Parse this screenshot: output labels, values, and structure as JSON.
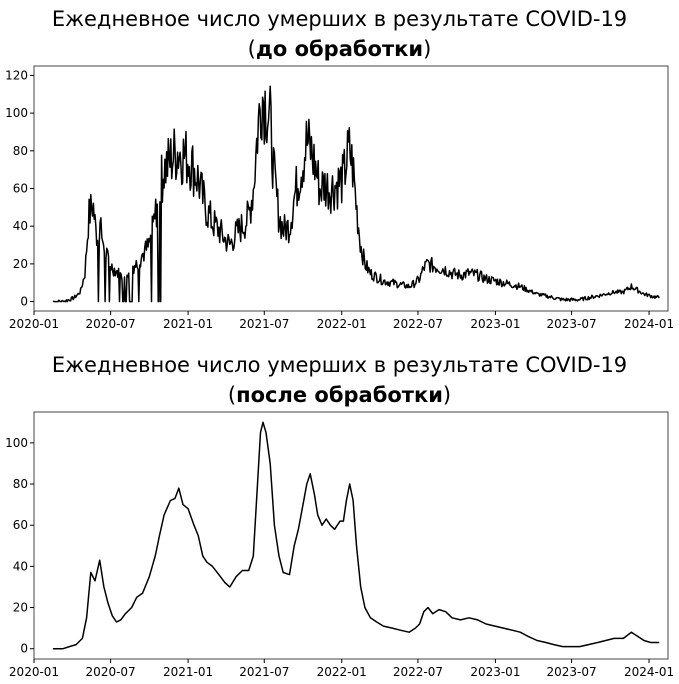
{
  "chart_data": [
    {
      "type": "line",
      "title_main": "Ежедневное число умерших в результате COVID-19",
      "title_open": "(",
      "title_bold": "до обработки",
      "title_close": ")",
      "xlabel": "",
      "ylabel": "",
      "x_ticks": [
        "2020-01",
        "2020-07",
        "2021-01",
        "2021-07",
        "2022-01",
        "2022-07",
        "2023-01",
        "2023-07",
        "2024-01"
      ],
      "y_ticks": [
        0,
        20,
        40,
        60,
        80,
        100,
        120
      ],
      "xlim": [
        "2020-01-01",
        "2024-02-15"
      ],
      "ylim": [
        -5,
        125
      ],
      "grid": false,
      "series": [
        {
          "noisy": true,
          "points": [
            [
              "2020-02-15",
              0
            ],
            [
              "2020-03-10",
              0
            ],
            [
              "2020-03-25",
              1
            ],
            [
              "2020-04-05",
              2
            ],
            [
              "2020-04-20",
              5
            ],
            [
              "2020-05-01",
              15
            ],
            [
              "2020-05-10",
              45
            ],
            [
              "2020-05-20",
              52
            ],
            [
              "2020-05-28",
              35
            ],
            [
              "2020-06-05",
              40
            ],
            [
              "2020-06-15",
              30
            ],
            [
              "2020-06-25",
              22
            ],
            [
              "2020-07-05",
              18
            ],
            [
              "2020-07-20",
              15
            ],
            [
              "2020-08-01",
              12
            ],
            [
              "2020-08-15",
              18
            ],
            [
              "2020-09-01",
              20
            ],
            [
              "2020-09-15",
              25
            ],
            [
              "2020-10-01",
              30
            ],
            [
              "2020-10-15",
              45
            ],
            [
              "2020-10-25",
              60
            ],
            [
              "2020-11-05",
              70
            ],
            [
              "2020-11-20",
              75
            ],
            [
              "2020-12-05",
              80
            ],
            [
              "2020-12-20",
              78
            ],
            [
              "2021-01-05",
              75
            ],
            [
              "2021-01-15",
              70
            ],
            [
              "2021-01-25",
              65
            ],
            [
              "2021-02-05",
              55
            ],
            [
              "2021-02-15",
              48
            ],
            [
              "2021-02-28",
              42
            ],
            [
              "2021-03-15",
              38
            ],
            [
              "2021-03-30",
              33
            ],
            [
              "2021-04-10",
              30
            ],
            [
              "2021-04-25",
              36
            ],
            [
              "2021-05-10",
              40
            ],
            [
              "2021-05-25",
              45
            ],
            [
              "2021-06-05",
              60
            ],
            [
              "2021-06-15",
              90
            ],
            [
              "2021-06-25",
              110
            ],
            [
              "2021-07-05",
              105
            ],
            [
              "2021-07-15",
              95
            ],
            [
              "2021-07-25",
              65
            ],
            [
              "2021-08-05",
              45
            ],
            [
              "2021-08-15",
              38
            ],
            [
              "2021-08-30",
              40
            ],
            [
              "2021-09-10",
              55
            ],
            [
              "2021-09-20",
              65
            ],
            [
              "2021-10-01",
              75
            ],
            [
              "2021-10-10",
              85
            ],
            [
              "2021-10-20",
              80
            ],
            [
              "2021-11-01",
              70
            ],
            [
              "2021-11-10",
              60
            ],
            [
              "2021-11-20",
              62
            ],
            [
              "2021-12-05",
              60
            ],
            [
              "2021-12-20",
              62
            ],
            [
              "2022-01-05",
              65
            ],
            [
              "2022-01-12",
              75
            ],
            [
              "2022-01-20",
              80
            ],
            [
              "2022-01-28",
              70
            ],
            [
              "2022-02-05",
              50
            ],
            [
              "2022-02-15",
              30
            ],
            [
              "2022-02-25",
              20
            ],
            [
              "2022-03-10",
              15
            ],
            [
              "2022-03-25",
              13
            ],
            [
              "2022-04-10",
              11
            ],
            [
              "2022-05-01",
              10
            ],
            [
              "2022-05-20",
              9
            ],
            [
              "2022-06-10",
              8
            ],
            [
              "2022-06-25",
              10
            ],
            [
              "2022-07-05",
              12
            ],
            [
              "2022-07-15",
              18
            ],
            [
              "2022-07-25",
              20
            ],
            [
              "2022-08-05",
              19
            ],
            [
              "2022-08-20",
              18
            ],
            [
              "2022-09-05",
              17
            ],
            [
              "2022-09-20",
              15
            ],
            [
              "2022-10-10",
              14
            ],
            [
              "2022-10-30",
              15
            ],
            [
              "2022-11-20",
              14
            ],
            [
              "2022-12-10",
              12
            ],
            [
              "2022-12-31",
              11
            ],
            [
              "2023-01-20",
              10
            ],
            [
              "2023-02-10",
              9
            ],
            [
              "2023-03-01",
              8
            ],
            [
              "2023-03-20",
              6
            ],
            [
              "2023-04-10",
              4
            ],
            [
              "2023-05-01",
              3
            ],
            [
              "2023-05-20",
              2
            ],
            [
              "2023-06-10",
              1
            ],
            [
              "2023-07-01",
              1
            ],
            [
              "2023-07-20",
              1
            ],
            [
              "2023-08-10",
              2
            ],
            [
              "2023-09-01",
              3
            ],
            [
              "2023-09-20",
              4
            ],
            [
              "2023-10-10",
              5
            ],
            [
              "2023-11-01",
              5
            ],
            [
              "2023-11-20",
              8
            ],
            [
              "2023-12-05",
              6
            ],
            [
              "2023-12-20",
              4
            ],
            [
              "2024-01-05",
              3
            ],
            [
              "2024-01-25",
              2
            ]
          ]
        }
      ]
    },
    {
      "type": "line",
      "title_main": "Ежедневное число умерших в результате COVID-19",
      "title_open": "(",
      "title_bold": "после обработки",
      "title_close": ")",
      "xlabel": "",
      "ylabel": "",
      "x_ticks": [
        "2020-01",
        "2020-07",
        "2021-01",
        "2021-07",
        "2022-01",
        "2022-07",
        "2023-01",
        "2023-07",
        "2024-01"
      ],
      "y_ticks": [
        0,
        20,
        40,
        60,
        80,
        100
      ],
      "xlim": [
        "2020-01-01",
        "2024-02-15"
      ],
      "ylim": [
        -5,
        115
      ],
      "grid": false,
      "series": [
        {
          "noisy": false,
          "points": [
            [
              "2020-02-15",
              0
            ],
            [
              "2020-03-10",
              0
            ],
            [
              "2020-03-25",
              1
            ],
            [
              "2020-04-10",
              2
            ],
            [
              "2020-04-25",
              5
            ],
            [
              "2020-05-05",
              15
            ],
            [
              "2020-05-15",
              37
            ],
            [
              "2020-05-25",
              33
            ],
            [
              "2020-06-05",
              43
            ],
            [
              "2020-06-15",
              30
            ],
            [
              "2020-06-25",
              22
            ],
            [
              "2020-07-05",
              16
            ],
            [
              "2020-07-15",
              13
            ],
            [
              "2020-07-25",
              14
            ],
            [
              "2020-08-05",
              17
            ],
            [
              "2020-08-20",
              20
            ],
            [
              "2020-09-01",
              25
            ],
            [
              "2020-09-15",
              27
            ],
            [
              "2020-10-01",
              35
            ],
            [
              "2020-10-15",
              45
            ],
            [
              "2020-10-25",
              55
            ],
            [
              "2020-11-05",
              65
            ],
            [
              "2020-11-20",
              72
            ],
            [
              "2020-12-01",
              73
            ],
            [
              "2020-12-10",
              78
            ],
            [
              "2020-12-20",
              70
            ],
            [
              "2021-01-01",
              68
            ],
            [
              "2021-01-15",
              60
            ],
            [
              "2021-01-25",
              55
            ],
            [
              "2021-02-05",
              45
            ],
            [
              "2021-02-15",
              42
            ],
            [
              "2021-02-28",
              40
            ],
            [
              "2021-03-15",
              36
            ],
            [
              "2021-03-30",
              32
            ],
            [
              "2021-04-10",
              30
            ],
            [
              "2021-04-25",
              35
            ],
            [
              "2021-05-10",
              38
            ],
            [
              "2021-05-25",
              38
            ],
            [
              "2021-06-05",
              45
            ],
            [
              "2021-06-15",
              80
            ],
            [
              "2021-06-22",
              105
            ],
            [
              "2021-06-28",
              110
            ],
            [
              "2021-07-05",
              105
            ],
            [
              "2021-07-15",
              90
            ],
            [
              "2021-07-25",
              60
            ],
            [
              "2021-08-05",
              45
            ],
            [
              "2021-08-15",
              37
            ],
            [
              "2021-08-30",
              36
            ],
            [
              "2021-09-10",
              50
            ],
            [
              "2021-09-20",
              58
            ],
            [
              "2021-10-01",
              70
            ],
            [
              "2021-10-10",
              80
            ],
            [
              "2021-10-18",
              85
            ],
            [
              "2021-10-28",
              75
            ],
            [
              "2021-11-05",
              65
            ],
            [
              "2021-11-15",
              60
            ],
            [
              "2021-11-25",
              63
            ],
            [
              "2021-12-05",
              60
            ],
            [
              "2021-12-15",
              58
            ],
            [
              "2021-12-28",
              62
            ],
            [
              "2022-01-05",
              62
            ],
            [
              "2022-01-12",
              72
            ],
            [
              "2022-01-20",
              80
            ],
            [
              "2022-01-28",
              72
            ],
            [
              "2022-02-05",
              50
            ],
            [
              "2022-02-15",
              30
            ],
            [
              "2022-02-25",
              20
            ],
            [
              "2022-03-10",
              15
            ],
            [
              "2022-03-25",
              13
            ],
            [
              "2022-04-10",
              11
            ],
            [
              "2022-05-01",
              10
            ],
            [
              "2022-05-20",
              9
            ],
            [
              "2022-06-10",
              8
            ],
            [
              "2022-06-25",
              10
            ],
            [
              "2022-07-05",
              12
            ],
            [
              "2022-07-15",
              18
            ],
            [
              "2022-07-25",
              20
            ],
            [
              "2022-08-05",
              17
            ],
            [
              "2022-08-20",
              19
            ],
            [
              "2022-09-05",
              18
            ],
            [
              "2022-09-20",
              15
            ],
            [
              "2022-10-10",
              14
            ],
            [
              "2022-10-30",
              15
            ],
            [
              "2022-11-20",
              14
            ],
            [
              "2022-12-10",
              12
            ],
            [
              "2022-12-31",
              11
            ],
            [
              "2023-01-20",
              10
            ],
            [
              "2023-02-10",
              9
            ],
            [
              "2023-03-01",
              8
            ],
            [
              "2023-03-20",
              6
            ],
            [
              "2023-04-10",
              4
            ],
            [
              "2023-05-01",
              3
            ],
            [
              "2023-05-20",
              2
            ],
            [
              "2023-06-10",
              1
            ],
            [
              "2023-07-01",
              1
            ],
            [
              "2023-07-20",
              1
            ],
            [
              "2023-08-10",
              2
            ],
            [
              "2023-09-01",
              3
            ],
            [
              "2023-09-20",
              4
            ],
            [
              "2023-10-10",
              5
            ],
            [
              "2023-11-01",
              5
            ],
            [
              "2023-11-20",
              8
            ],
            [
              "2023-12-05",
              6
            ],
            [
              "2023-12-20",
              4
            ],
            [
              "2024-01-05",
              3
            ],
            [
              "2024-01-25",
              3
            ]
          ]
        }
      ]
    }
  ]
}
